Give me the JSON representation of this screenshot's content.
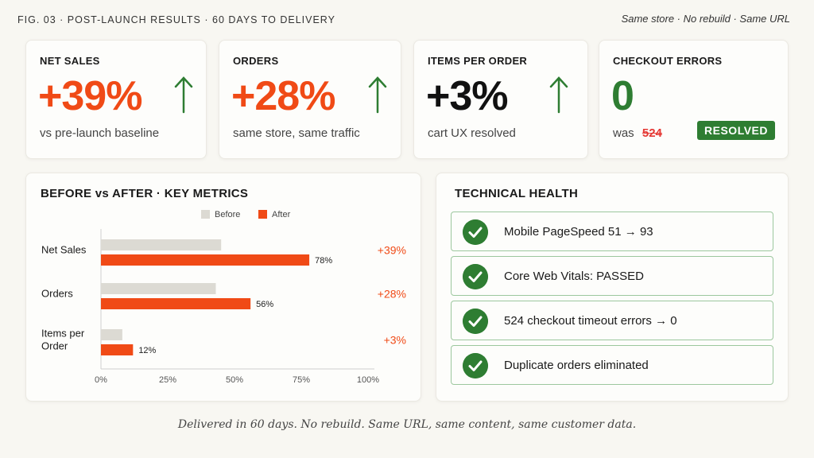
{
  "header": {
    "figure_label": "FIG. 03 · POST-LAUNCH RESULTS · 60 DAYS TO DELIVERY",
    "tagline": "Same store · No rebuild · Same URL"
  },
  "kpis": [
    {
      "label": "NET SALES",
      "value": "+39%",
      "sub": "vs pre-launch baseline",
      "color": "#f04a16",
      "arrow": "up-arrow-icon"
    },
    {
      "label": "ORDERS",
      "value": "+28%",
      "sub": "same store, same traffic",
      "color": "#f04a16",
      "arrow": "up-arrow-icon"
    },
    {
      "label": "ITEMS PER ORDER",
      "value": "+3%",
      "sub": "cart UX resolved",
      "color": "#111111",
      "arrow": "up-arrow-icon"
    },
    {
      "label": "CHECKOUT ERRORS",
      "value": "0",
      "sub_prefix": "was",
      "sub_strike": "524",
      "badge": "RESOLVED",
      "color": "#2e7d32"
    }
  ],
  "metrics_panel": {
    "title": "BEFORE vs AFTER · KEY METRICS"
  },
  "chart_data": {
    "type": "bar",
    "orientation": "horizontal",
    "title": "BEFORE vs AFTER · KEY METRICS",
    "categories": [
      "Net Sales",
      "Orders",
      "Items per Order"
    ],
    "series": [
      {
        "name": "Before",
        "color": "#dcdad3",
        "values": [
          45,
          43,
          8
        ]
      },
      {
        "name": "After",
        "color": "#f04a16",
        "values": [
          78,
          56,
          12
        ],
        "labels": [
          "78%",
          "56%",
          "12%"
        ]
      }
    ],
    "deltas": [
      "+39%",
      "+28%",
      "+3%"
    ],
    "xlim": [
      0,
      100
    ],
    "xticks": [
      "0%",
      "25%",
      "50%",
      "75%",
      "100%"
    ],
    "legend_position": "top-center"
  },
  "health_panel": {
    "title": "TECHNICAL HEALTH",
    "items": [
      {
        "text": "Mobile PageSpeed 51 → 93"
      },
      {
        "text": "Core Web Vitals: PASSED"
      },
      {
        "text": "524 checkout timeout errors → 0"
      },
      {
        "text": "Duplicate orders eliminated"
      }
    ],
    "check_color": "#2e7d32"
  },
  "footer": {
    "caption": "Delivered in 60 days. No rebuild. Same URL, same content, same customer data."
  }
}
